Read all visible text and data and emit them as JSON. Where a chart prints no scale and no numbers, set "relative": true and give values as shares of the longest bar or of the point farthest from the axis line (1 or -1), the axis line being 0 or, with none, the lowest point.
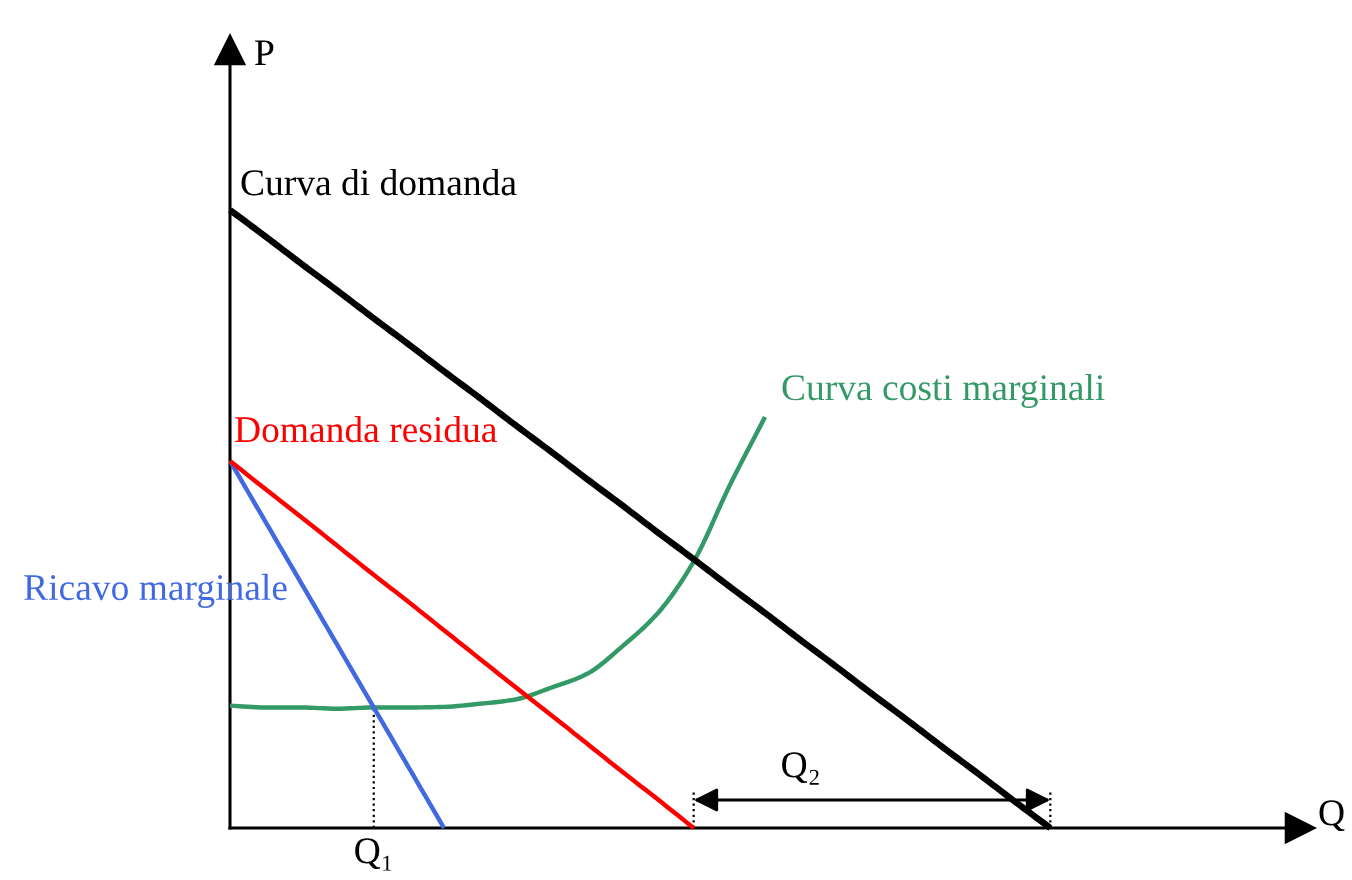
{
  "chart_data": {
    "type": "line",
    "relative": true,
    "xlabel": "Q",
    "ylabel": "P",
    "categories": [
      null,
      null,
      null,
      null,
      null,
      null,
      null,
      null,
      null,
      null,
      null,
      null,
      null,
      null,
      null,
      null,
      null,
      null,
      null,
      null,
      null,
      null,
      null,
      null,
      null,
      null,
      null,
      null,
      null,
      null,
      null
    ],
    "series": [
      {
        "name": "Curva di domanda",
        "color": "#000000",
        "values": [
          1.0,
          0.957,
          0.913,
          0.87,
          0.826,
          0.783,
          0.739,
          0.696,
          0.652,
          0.609,
          0.565,
          0.522,
          0.478,
          0.435,
          0.391,
          0.348,
          0.304,
          0.261,
          0.217,
          0.174,
          0.13,
          0.087,
          0.043,
          0.0,
          null,
          null,
          null,
          null,
          null,
          null,
          null
        ]
      },
      {
        "name": "Domanda residua",
        "color": "#ff0000",
        "values": [
          0.594,
          0.548,
          0.503,
          0.457,
          0.411,
          0.366,
          0.32,
          0.274,
          0.228,
          0.183,
          0.137,
          0.091,
          0.046,
          0.0,
          null,
          null,
          null,
          null,
          null,
          null,
          null,
          null,
          null,
          null,
          null,
          null,
          null,
          null,
          null,
          null,
          null
        ]
      },
      {
        "name": "Ricavo marginale",
        "color": "#4169e1",
        "values": [
          0.594,
          0.495,
          0.396,
          0.297,
          0.198,
          0.099,
          0.0,
          null,
          null,
          null,
          null,
          null,
          null,
          null,
          null,
          null,
          null,
          null,
          null,
          null,
          null,
          null,
          null,
          null,
          null,
          null,
          null,
          null,
          null,
          null,
          null
        ]
      },
      {
        "name": "Curva costi marginali",
        "color": "#339966",
        "values": [
          0.198,
          0.195,
          0.195,
          0.193,
          0.195,
          0.195,
          0.196,
          0.201,
          0.208,
          0.227,
          0.249,
          0.294,
          0.348,
          0.431,
          0.553,
          0.665,
          null,
          null,
          null,
          null,
          null,
          null,
          null,
          null,
          null,
          null,
          null,
          null,
          null,
          null,
          null
        ]
      }
    ],
    "annotations": [
      "Q₁",
      "Q₂"
    ]
  }
}
